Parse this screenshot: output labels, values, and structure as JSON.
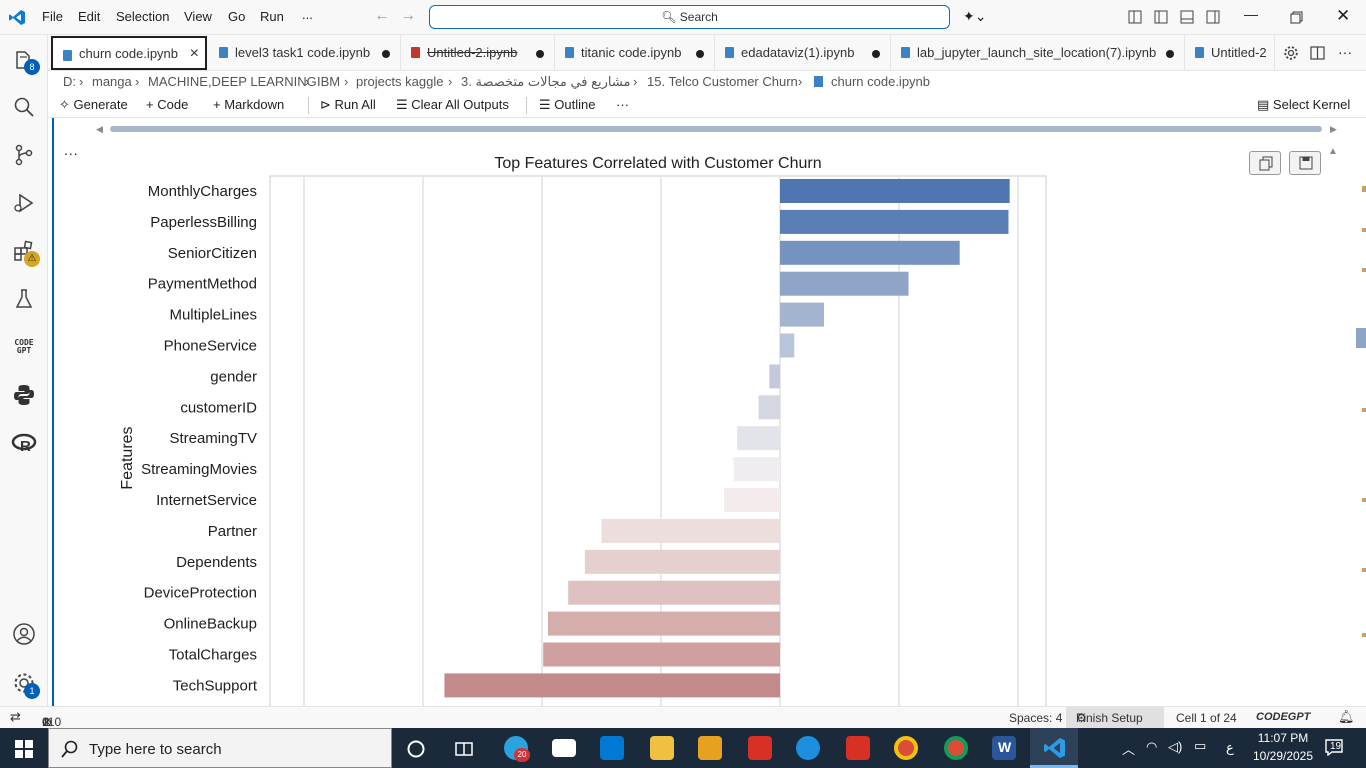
{
  "menu": [
    "File",
    "Edit",
    "Selection",
    "View",
    "Go",
    "Run",
    "..."
  ],
  "search": {
    "label": "Search"
  },
  "activity": {
    "explorer_badge": "8",
    "accounts_badge": "1",
    "codegpt_label": "CODE GPT"
  },
  "tabs": [
    {
      "label": "churn code.ipynb",
      "close": "×"
    },
    {
      "label": "level3 task1 code.ipynb"
    },
    {
      "label": "Untitled-2.ipynb"
    },
    {
      "label": "titanic code.ipynb"
    },
    {
      "label": "edadataviz(1).ipynb"
    },
    {
      "label": "lab_jupyter_launch_site_location(7).ipynb"
    },
    {
      "label": "Untitled-2"
    }
  ],
  "breadcrumb": [
    "D:",
    "manga",
    "MACHINE,DEEP LEARNING",
    "IBM",
    "projects kaggle",
    "3. مشاريع في مجالات متخصصة",
    "15. Telco Customer Churn",
    "churn code.ipynb"
  ],
  "toolbar": {
    "generate": "Generate",
    "code": "Code",
    "markdown": "Markdown",
    "run_all": "Run All",
    "clear": "Clear All Outputs",
    "outline": "Outline",
    "more": "···",
    "kernel": "Select Kernel"
  },
  "cell": {
    "ellipsis": "..."
  },
  "chart_data": {
    "type": "bar",
    "orientation": "horizontal",
    "title": "Top Features Correlated with Customer Churn",
    "xlabel": "",
    "ylabel": "Features",
    "grid": "vertical",
    "categories": [
      "MonthlyCharges",
      "PaperlessBilling",
      "SeniorCitizen",
      "PaymentMethod",
      "MultipleLines",
      "PhoneService",
      "gender",
      "customerID",
      "StreamingTV",
      "StreamingMovies",
      "InternetService",
      "Partner",
      "Dependents",
      "DeviceProtection",
      "OnlineBackup",
      "TotalCharges",
      "TechSupport"
    ],
    "values": [
      0.193,
      0.192,
      0.151,
      0.108,
      0.037,
      0.012,
      -0.009,
      -0.018,
      -0.036,
      -0.039,
      -0.047,
      -0.15,
      -0.164,
      -0.178,
      -0.195,
      -0.199,
      -0.282
    ],
    "colors": [
      "#4f76b0",
      "#5a7fb5",
      "#7693bf",
      "#8ea5c7",
      "#a3b4cf",
      "#b8c4d9",
      "#c4cadb",
      "#d4d7e1",
      "#e3e4e9",
      "#efedf0",
      "#f4ecec",
      "#eddede",
      "#e6cfcf",
      "#dfc1c1",
      "#d6adad",
      "#d09f9f",
      "#c28a8a"
    ]
  },
  "status": {
    "errors": "0",
    "warnings": "110",
    "spaces": "Spaces: 4",
    "finish": "Finish Setup",
    "cell": "Cell 1 of 24",
    "codegpt": "CODEGPT"
  },
  "taskbar": {
    "search": "Type here to search",
    "time": "11:07 PM",
    "date": "10/29/2025",
    "lang": "ع",
    "notif": "19",
    "telegram_badge": "20"
  }
}
